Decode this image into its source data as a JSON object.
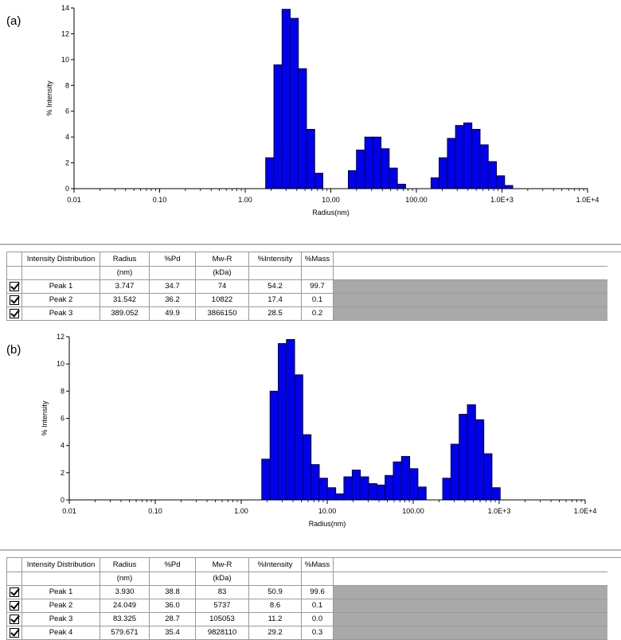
{
  "panels": [
    {
      "label": "(a)",
      "chart_data": {
        "type": "bar",
        "x_scale": "log",
        "xlim": [
          0.01,
          10000
        ],
        "ylim": [
          0,
          14
        ],
        "yticks": [
          0,
          2,
          4,
          6,
          8,
          10,
          12,
          14
        ],
        "xtick_labels": [
          "0.01",
          "0.10",
          "1.00",
          "10.00",
          "100.00",
          "1.0E+3",
          "1.0E+4"
        ],
        "xlabel": "Radius(nm)",
        "ylabel": "% Intensity",
        "bar_color": "#0000ee",
        "bars": [
          {
            "x": 1.73,
            "y": 2.4
          },
          {
            "x": 2.16,
            "y": 9.6
          },
          {
            "x": 2.69,
            "y": 13.9
          },
          {
            "x": 3.35,
            "y": 13.2
          },
          {
            "x": 4.17,
            "y": 9.3
          },
          {
            "x": 5.2,
            "y": 4.6
          },
          {
            "x": 6.48,
            "y": 1.2
          },
          {
            "x": 16.0,
            "y": 1.4
          },
          {
            "x": 19.9,
            "y": 3.0
          },
          {
            "x": 24.9,
            "y": 4.0
          },
          {
            "x": 31.0,
            "y": 4.0
          },
          {
            "x": 38.6,
            "y": 3.1
          },
          {
            "x": 48.1,
            "y": 1.6
          },
          {
            "x": 60.0,
            "y": 0.35
          },
          {
            "x": 148.0,
            "y": 0.85
          },
          {
            "x": 184.0,
            "y": 2.4
          },
          {
            "x": 230.0,
            "y": 3.9
          },
          {
            "x": 286.0,
            "y": 4.9
          },
          {
            "x": 357.0,
            "y": 5.1
          },
          {
            "x": 445.0,
            "y": 4.6
          },
          {
            "x": 554.0,
            "y": 3.4
          },
          {
            "x": 691.0,
            "y": 2.1
          },
          {
            "x": 861.0,
            "y": 1.0
          },
          {
            "x": 1073.0,
            "y": 0.25
          }
        ]
      },
      "table": {
        "headers": [
          "Intensity Distribution",
          "Radius",
          "%Pd",
          "Mw-R",
          "%Intensity",
          "%Mass"
        ],
        "units": [
          "",
          "(nm)",
          "",
          "(kDa)",
          "",
          ""
        ],
        "rows": [
          [
            "Peak 1",
            "3.747",
            "34.7",
            "74",
            "54.2",
            "99.7"
          ],
          [
            "Peak 2",
            "31.542",
            "36.2",
            "10822",
            "17.4",
            "0.1"
          ],
          [
            "Peak 3",
            "389.052",
            "49.9",
            "3866150",
            "28.5",
            "0.2"
          ]
        ]
      }
    },
    {
      "label": "(b)",
      "chart_data": {
        "type": "bar",
        "x_scale": "log",
        "xlim": [
          0.01,
          10000
        ],
        "ylim": [
          0,
          12
        ],
        "yticks": [
          0,
          2,
          4,
          6,
          8,
          10,
          12
        ],
        "xtick_labels": [
          "0.01",
          "0.10",
          "1.00",
          "10.00",
          "100.00",
          "1.0E+3",
          "1.0E+4"
        ],
        "xlabel": "Radius(nm)",
        "ylabel": "% Intensity",
        "bar_color": "#0000ee",
        "bars": [
          {
            "x": 1.73,
            "y": 3.0
          },
          {
            "x": 2.16,
            "y": 8.0
          },
          {
            "x": 2.69,
            "y": 11.5
          },
          {
            "x": 3.35,
            "y": 11.8
          },
          {
            "x": 4.17,
            "y": 9.2
          },
          {
            "x": 5.2,
            "y": 4.8
          },
          {
            "x": 6.48,
            "y": 2.6
          },
          {
            "x": 8.08,
            "y": 1.6
          },
          {
            "x": 10.07,
            "y": 0.9
          },
          {
            "x": 12.55,
            "y": 0.45
          },
          {
            "x": 15.6,
            "y": 1.7
          },
          {
            "x": 19.5,
            "y": 2.2
          },
          {
            "x": 24.3,
            "y": 1.7
          },
          {
            "x": 30.3,
            "y": 1.2
          },
          {
            "x": 37.7,
            "y": 1.1
          },
          {
            "x": 47.0,
            "y": 1.8
          },
          {
            "x": 58.6,
            "y": 2.8
          },
          {
            "x": 73.0,
            "y": 3.2
          },
          {
            "x": 91.0,
            "y": 2.3
          },
          {
            "x": 113.4,
            "y": 0.95
          },
          {
            "x": 220.0,
            "y": 1.6
          },
          {
            "x": 274.0,
            "y": 4.1
          },
          {
            "x": 342.0,
            "y": 6.3
          },
          {
            "x": 426.0,
            "y": 7.0
          },
          {
            "x": 531.0,
            "y": 5.9
          },
          {
            "x": 661.0,
            "y": 3.4
          },
          {
            "x": 824.0,
            "y": 0.9
          }
        ]
      },
      "table": {
        "headers": [
          "Intensity Distribution",
          "Radius",
          "%Pd",
          "Mw-R",
          "%Intensity",
          "%Mass"
        ],
        "units": [
          "",
          "(nm)",
          "",
          "(kDa)",
          "",
          ""
        ],
        "rows": [
          [
            "Peak 1",
            "3.930",
            "38.8",
            "83",
            "50.9",
            "99.6"
          ],
          [
            "Peak 2",
            "24.049",
            "36.0",
            "5737",
            "8.6",
            "0.1"
          ],
          [
            "Peak 3",
            "83.325",
            "28.7",
            "105053",
            "11.2",
            "0.0"
          ],
          [
            "Peak 4",
            "579.671",
            "35.4",
            "9828110",
            "29.2",
            "0.3"
          ]
        ]
      }
    }
  ]
}
